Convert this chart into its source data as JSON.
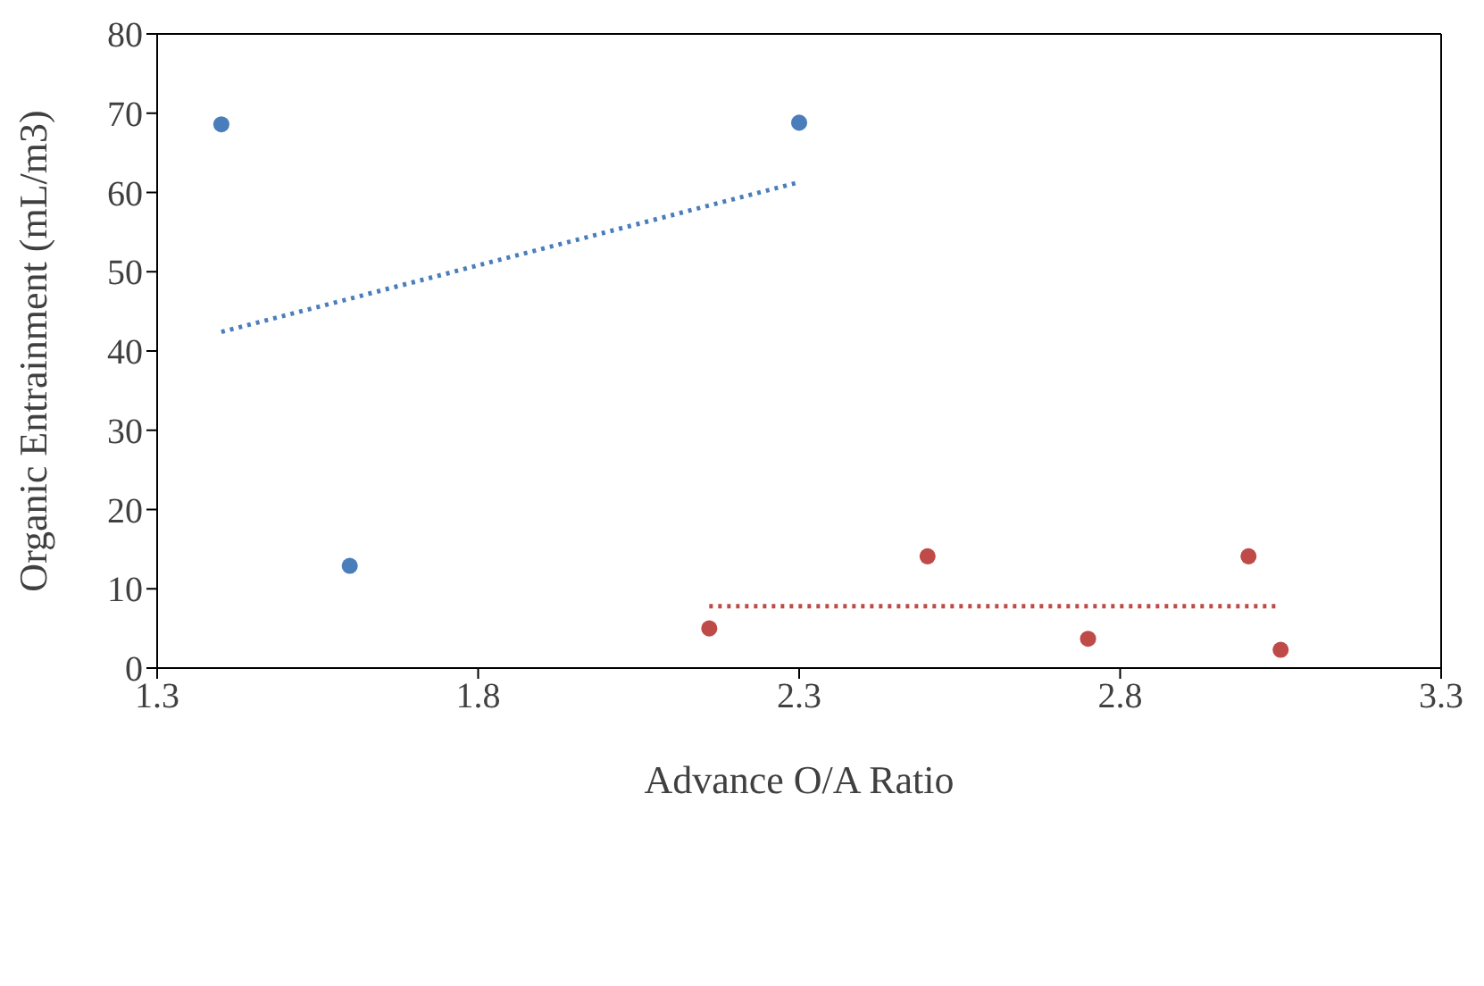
{
  "chart_data": {
    "type": "scatter",
    "xlabel": "Advance O/A Ratio",
    "ylabel": "Organic Entrainment (mL/m3)",
    "xlim": [
      1.3,
      3.3
    ],
    "xticks": [
      1.3,
      1.8,
      2.3,
      2.8,
      3.3
    ],
    "ylim": [
      0,
      80
    ],
    "yticks": [
      0,
      10,
      20,
      30,
      40,
      50,
      60,
      70,
      80
    ],
    "grid": false,
    "legend": false,
    "marker": "circle",
    "series": [
      {
        "color": "#4a7ebb",
        "x": [
          1.4,
          1.6,
          2.3
        ],
        "values": [
          68.6,
          12.9,
          68.8
        ]
      },
      {
        "color": "#be4b48",
        "x": [
          2.16,
          2.5,
          2.75,
          3.0,
          3.05
        ],
        "values": [
          5.0,
          14.1,
          3.7,
          14.1,
          2.3
        ]
      },
      {
        "type": "line",
        "color": "#4a7ebb",
        "line_style": "dotted",
        "marker": "none",
        "x": [
          1.4,
          2.3
        ],
        "values": [
          42.4,
          61.3
        ]
      },
      {
        "type": "line",
        "color": "#be4b48",
        "line_style": "dotted",
        "marker": "none",
        "x": [
          2.16,
          3.05
        ],
        "values": [
          7.8,
          7.8
        ]
      }
    ]
  }
}
